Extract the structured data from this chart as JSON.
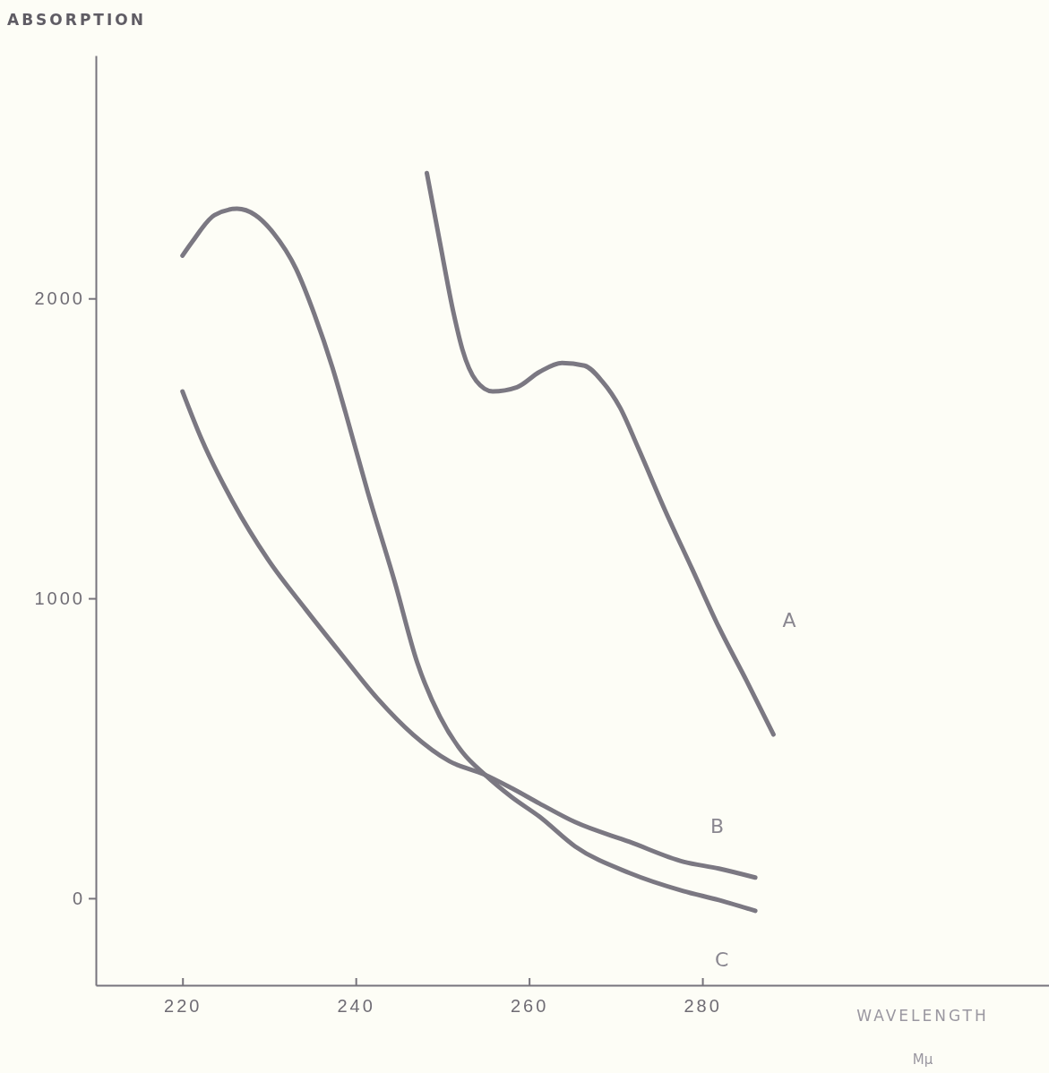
{
  "chart_data": {
    "type": "line",
    "ylabel": "ABSORPTION",
    "xlabel": "WAVELENGTH",
    "annotations": [
      "Mμ"
    ],
    "xlim": [
      210,
      320
    ],
    "ylim": [
      -290,
      2810
    ],
    "xticks": [
      220,
      240,
      260,
      280
    ],
    "yticks": [
      0,
      1000,
      2000
    ],
    "grid": false,
    "legend": false,
    "marker": "none",
    "line_style": "solid",
    "series": [
      {
        "name": "A",
        "color": "#7b7882",
        "x": [
          248.2,
          249.7,
          251.3,
          252.3,
          253.9,
          255.8,
          258.6,
          261.2,
          263.8,
          266.4,
          268.4,
          270.5,
          272.6,
          275.7,
          278.8,
          281.9,
          285.1,
          288.2
        ],
        "values": [
          2418,
          2188,
          1949,
          1830,
          1725,
          1690,
          1704,
          1755,
          1785,
          1776,
          1725,
          1636,
          1501,
          1293,
          1099,
          904,
          725,
          546
        ]
      },
      {
        "name": "B",
        "color": "#7b7882",
        "x": [
          220,
          222.2,
          225.8,
          229.9,
          234.2,
          238.3,
          242.5,
          246.6,
          250.8,
          254.9,
          258.0,
          261.2,
          265.3,
          271.6,
          277.8,
          281.9,
          286.1
        ],
        "values": [
          1690,
          1531,
          1322,
          1128,
          964,
          815,
          666,
          546,
          457,
          412,
          367,
          316,
          254,
          188,
          122,
          99,
          69
        ]
      },
      {
        "name": "C",
        "color": "#7b7882",
        "x": [
          220,
          221.1,
          223.7,
          226.3,
          228.4,
          230.5,
          233.1,
          235.2,
          237.3,
          238.8,
          241.4,
          244.5,
          247.1,
          249.7,
          252.3,
          254.9,
          258.0,
          261.2,
          265.3,
          271.6,
          277.8,
          281.9,
          286.1
        ],
        "values": [
          2143,
          2188,
          2278,
          2299,
          2278,
          2218,
          2099,
          1949,
          1770,
          1621,
          1352,
          1054,
          785,
          606,
          487,
          412,
          337,
          272,
          173,
          84,
          24,
          -6,
          -42
        ]
      }
    ]
  }
}
